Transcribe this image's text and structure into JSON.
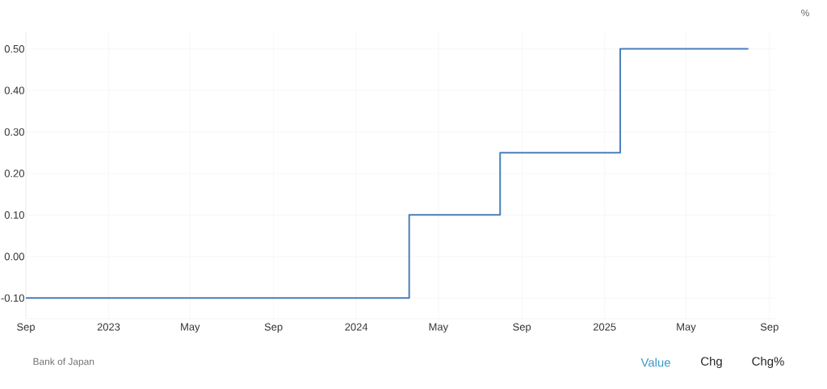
{
  "chart_data": {
    "type": "step",
    "ylabel": "%",
    "x": [
      "2022-09-01",
      "2024-03-19",
      "2024-07-31",
      "2025-01-24",
      "2025-08-01"
    ],
    "series": [
      {
        "color": "#4a7ebb",
        "values": [
          -0.1,
          0.1,
          0.25,
          0.5,
          0.5
        ]
      }
    ],
    "xlim": [
      "2022-09-01",
      "2025-09-12"
    ],
    "xticks": [
      {
        "value": "2022-09",
        "label": "Sep"
      },
      {
        "value": "2023-01",
        "label": "2023"
      },
      {
        "value": "2023-05",
        "label": "May"
      },
      {
        "value": "2023-09",
        "label": "Sep"
      },
      {
        "value": "2024-01",
        "label": "2024"
      },
      {
        "value": "2024-05",
        "label": "May"
      },
      {
        "value": "2024-09",
        "label": "Sep"
      },
      {
        "value": "2025-01",
        "label": "2025"
      },
      {
        "value": "2025-05",
        "label": "May"
      },
      {
        "value": "2025-09",
        "label": "Sep"
      }
    ],
    "ylim": [
      -0.15,
      0.54
    ],
    "yticks": [
      {
        "value": -0.1,
        "label": "-0.10"
      },
      {
        "value": 0,
        "label": "0.00"
      },
      {
        "value": 0.1,
        "label": "0.10"
      },
      {
        "value": 0.2,
        "label": "0.20"
      },
      {
        "value": 0.3,
        "label": "0.30"
      },
      {
        "value": 0.4,
        "label": "0.40"
      },
      {
        "value": 0.5,
        "label": "0.50"
      }
    ],
    "grid": true,
    "annotations": [
      "Bank of Japan",
      "Value",
      "Chg",
      "Chg%"
    ]
  }
}
